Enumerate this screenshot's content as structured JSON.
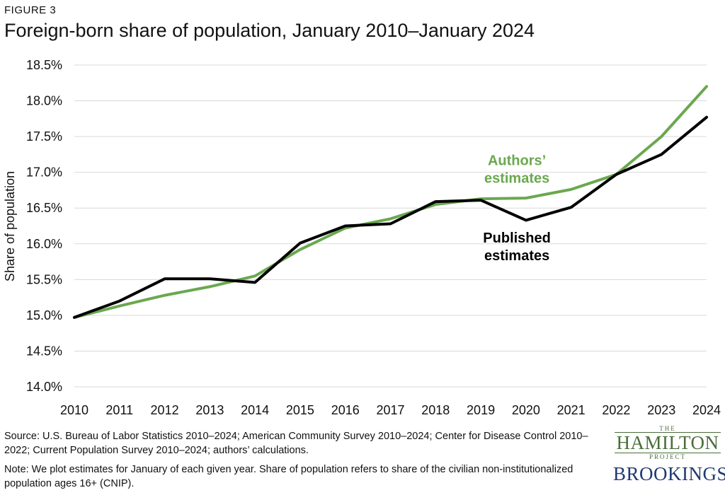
{
  "figure_label": "FIGURE 3",
  "chart_data": {
    "type": "line",
    "title": "Foreign-born share of population, January 2010–January 2024",
    "ylabel": "Share of  population",
    "xlabel": "",
    "x": [
      2010,
      2011,
      2012,
      2013,
      2014,
      2015,
      2016,
      2017,
      2018,
      2019,
      2020,
      2021,
      2022,
      2023,
      2024
    ],
    "ylim": [
      14.0,
      18.5
    ],
    "yticks": [
      14.0,
      14.5,
      15.0,
      15.5,
      16.0,
      16.5,
      17.0,
      17.5,
      18.0,
      18.5
    ],
    "ytick_labels": [
      "14.0%",
      "14.5%",
      "15.0%",
      "15.5%",
      "16.0%",
      "16.5%",
      "17.0%",
      "17.5%",
      "18.0%",
      "18.5%"
    ],
    "grid": "horizontal",
    "legend": "inline-labels",
    "series": [
      {
        "name": "Authors' estimates",
        "label_lines": [
          "Authors’",
          "estimates"
        ],
        "color": "#6aa84f",
        "values": [
          14.97,
          15.13,
          15.28,
          15.4,
          15.55,
          15.92,
          16.22,
          16.35,
          16.55,
          16.63,
          16.64,
          16.76,
          16.97,
          17.5,
          18.2
        ]
      },
      {
        "name": "Published estimates",
        "label_lines": [
          "Published",
          "estimates"
        ],
        "color": "#000000",
        "values": [
          14.97,
          15.2,
          15.51,
          15.51,
          15.46,
          16.01,
          16.25,
          16.28,
          16.59,
          16.61,
          16.33,
          16.51,
          16.97,
          17.25,
          17.77
        ]
      }
    ]
  },
  "footer": {
    "source": "Source: U.S. Bureau of Labor Statistics 2010–2024; American Community Survey 2010–2024; Center for Disease Control 2010–2022; Current Population Survey 2010–2024; authors’ calculations.",
    "note": "Note: We plot estimates for January of each given year. Share of population refers to share of the civilian non-institutionalized population ages 16+ (CNIP)."
  },
  "logos": {
    "hamilton_top": "THE",
    "hamilton_main": "HAMILTON",
    "hamilton_bottom": "PROJECT",
    "brookings": "BROOKINGS"
  }
}
